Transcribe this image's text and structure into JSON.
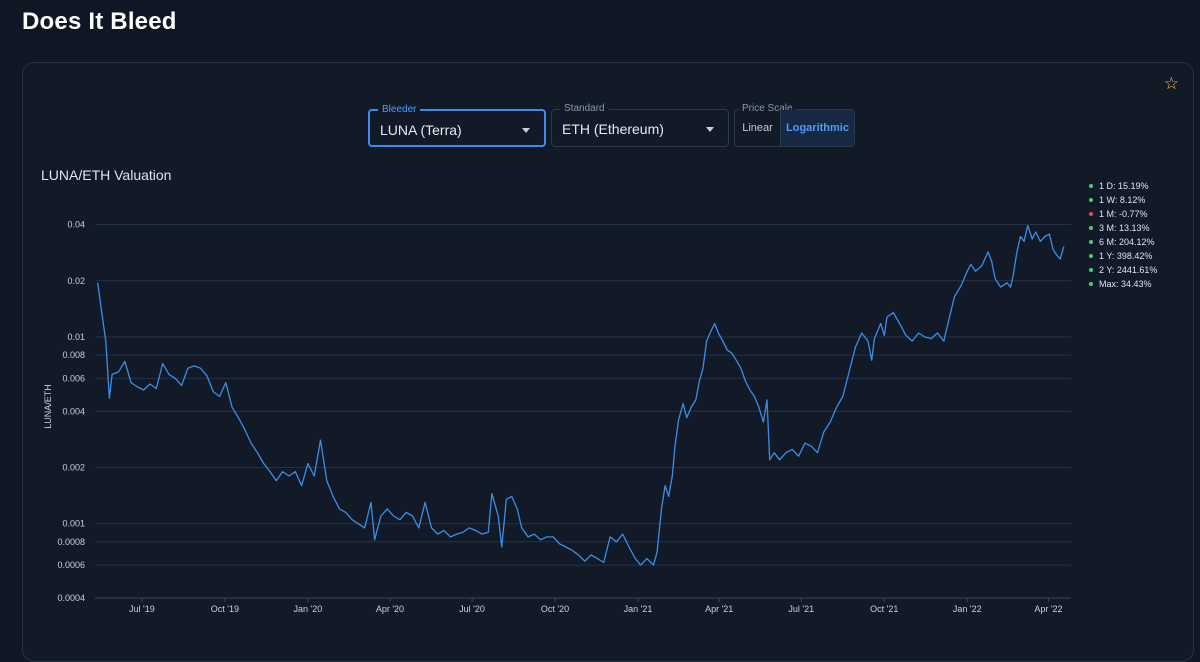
{
  "page": {
    "title": "Does It Bleed"
  },
  "controls": {
    "bleeder": {
      "label": "Bleeder",
      "value": "LUNA (Terra)"
    },
    "standard": {
      "label": "Standard",
      "value": "ETH (Ethereum)"
    },
    "price_scale": {
      "label": "Price Scale",
      "options": [
        "Linear",
        "Logarithmic"
      ],
      "selected": "Logarithmic"
    }
  },
  "colors": {
    "line": "#3a8ee6",
    "positive": "#3fd07a",
    "negative": "#e84d5b",
    "accent": "#4d9bff",
    "star": "#f2c744"
  },
  "icons": {
    "favorite": "star-outline-icon"
  },
  "stats": [
    {
      "label": "1 D: 15.19%",
      "direction": "up"
    },
    {
      "label": "1 W: 8.12%",
      "direction": "up"
    },
    {
      "label": "1 M: -0.77%",
      "direction": "down"
    },
    {
      "label": "3 M: 13.13%",
      "direction": "up"
    },
    {
      "label": "6 M: 204.12%",
      "direction": "up"
    },
    {
      "label": "1 Y: 398.42%",
      "direction": "up"
    },
    {
      "label": "2 Y: 2441.61%",
      "direction": "up"
    },
    {
      "label": "Max: 34.43%",
      "direction": "up"
    }
  ],
  "chart_data": {
    "type": "line",
    "title": "LUNA/ETH Valuation",
    "ylabel": "LUNA/ETH",
    "xlabel": "",
    "y_scale": "log",
    "ylim": [
      0.0004,
      0.045
    ],
    "xlim": [
      "2019-05-10",
      "2022-04-26"
    ],
    "grid": true,
    "y_ticks": [
      {
        "value": 0.04,
        "label": "0.04"
      },
      {
        "value": 0.02,
        "label": "0.02"
      },
      {
        "value": 0.01,
        "label": "0.01"
      },
      {
        "value": 0.008,
        "label": "0.008"
      },
      {
        "value": 0.006,
        "label": "0.006"
      },
      {
        "value": 0.004,
        "label": "0.004"
      },
      {
        "value": 0.002,
        "label": "0.002"
      },
      {
        "value": 0.001,
        "label": "0.001"
      },
      {
        "value": 0.0008,
        "label": "0.0008"
      },
      {
        "value": 0.0006,
        "label": "0.0006"
      },
      {
        "value": 0.0004,
        "label": "0.0004"
      }
    ],
    "x_ticks": [
      {
        "date": "2019-07-01",
        "label": "Jul '19"
      },
      {
        "date": "2019-10-01",
        "label": "Oct '19"
      },
      {
        "date": "2020-01-01",
        "label": "Jan '20"
      },
      {
        "date": "2020-04-01",
        "label": "Apr '20"
      },
      {
        "date": "2020-07-01",
        "label": "Jul '20"
      },
      {
        "date": "2020-10-01",
        "label": "Oct '20"
      },
      {
        "date": "2021-01-01",
        "label": "Jan '21"
      },
      {
        "date": "2021-04-01",
        "label": "Apr '21"
      },
      {
        "date": "2021-07-01",
        "label": "Jul '21"
      },
      {
        "date": "2021-10-01",
        "label": "Oct '21"
      },
      {
        "date": "2022-01-01",
        "label": "Jan '22"
      },
      {
        "date": "2022-04-01",
        "label": "Apr '22"
      }
    ],
    "series": [
      {
        "values": [
          [
            "2019-05-13",
            0.0195
          ],
          [
            "2019-05-18",
            0.013
          ],
          [
            "2019-05-22",
            0.0095
          ],
          [
            "2019-05-26",
            0.0047
          ],
          [
            "2019-05-29",
            0.0063
          ],
          [
            "2019-06-05",
            0.0065
          ],
          [
            "2019-06-12",
            0.0074
          ],
          [
            "2019-06-19",
            0.0057
          ],
          [
            "2019-06-26",
            0.0054
          ],
          [
            "2019-07-03",
            0.0052
          ],
          [
            "2019-07-10",
            0.0056
          ],
          [
            "2019-07-17",
            0.0053
          ],
          [
            "2019-07-24",
            0.0072
          ],
          [
            "2019-07-31",
            0.0063
          ],
          [
            "2019-08-07",
            0.006
          ],
          [
            "2019-08-14",
            0.0055
          ],
          [
            "2019-08-21",
            0.0068
          ],
          [
            "2019-08-28",
            0.007
          ],
          [
            "2019-09-04",
            0.0068
          ],
          [
            "2019-09-11",
            0.0062
          ],
          [
            "2019-09-18",
            0.0051
          ],
          [
            "2019-09-25",
            0.0048
          ],
          [
            "2019-10-02",
            0.0057
          ],
          [
            "2019-10-09",
            0.0042
          ],
          [
            "2019-10-16",
            0.0037
          ],
          [
            "2019-10-23",
            0.0032
          ],
          [
            "2019-10-30",
            0.0027
          ],
          [
            "2019-11-06",
            0.0024
          ],
          [
            "2019-11-13",
            0.0021
          ],
          [
            "2019-11-20",
            0.0019
          ],
          [
            "2019-11-27",
            0.0017
          ],
          [
            "2019-12-04",
            0.0019
          ],
          [
            "2019-12-11",
            0.0018
          ],
          [
            "2019-12-18",
            0.0019
          ],
          [
            "2019-12-25",
            0.0016
          ],
          [
            "2020-01-01",
            0.0021
          ],
          [
            "2020-01-08",
            0.0018
          ],
          [
            "2020-01-15",
            0.0028
          ],
          [
            "2020-01-22",
            0.0017
          ],
          [
            "2020-01-29",
            0.0014
          ],
          [
            "2020-02-05",
            0.0012
          ],
          [
            "2020-02-12",
            0.00115
          ],
          [
            "2020-02-19",
            0.00105
          ],
          [
            "2020-02-26",
            0.001
          ],
          [
            "2020-03-04",
            0.00095
          ],
          [
            "2020-03-11",
            0.0013
          ],
          [
            "2020-03-15",
            0.00082
          ],
          [
            "2020-03-22",
            0.0011
          ],
          [
            "2020-03-29",
            0.0012
          ],
          [
            "2020-04-05",
            0.0011
          ],
          [
            "2020-04-12",
            0.00105
          ],
          [
            "2020-04-19",
            0.00115
          ],
          [
            "2020-04-26",
            0.0011
          ],
          [
            "2020-05-03",
            0.00095
          ],
          [
            "2020-05-10",
            0.0013
          ],
          [
            "2020-05-17",
            0.00095
          ],
          [
            "2020-05-24",
            0.00088
          ],
          [
            "2020-05-31",
            0.00092
          ],
          [
            "2020-06-07",
            0.00085
          ],
          [
            "2020-06-14",
            0.00088
          ],
          [
            "2020-06-21",
            0.0009
          ],
          [
            "2020-06-28",
            0.00095
          ],
          [
            "2020-07-05",
            0.00092
          ],
          [
            "2020-07-12",
            0.00088
          ],
          [
            "2020-07-19",
            0.0009
          ],
          [
            "2020-07-23",
            0.00145
          ],
          [
            "2020-07-30",
            0.0011
          ],
          [
            "2020-08-03",
            0.00075
          ],
          [
            "2020-08-08",
            0.00135
          ],
          [
            "2020-08-14",
            0.0014
          ],
          [
            "2020-08-20",
            0.0012
          ],
          [
            "2020-08-25",
            0.00095
          ],
          [
            "2020-09-01",
            0.00085
          ],
          [
            "2020-09-08",
            0.00088
          ],
          [
            "2020-09-15",
            0.00082
          ],
          [
            "2020-09-22",
            0.00085
          ],
          [
            "2020-09-29",
            0.00085
          ],
          [
            "2020-10-06",
            0.00078
          ],
          [
            "2020-10-13",
            0.00075
          ],
          [
            "2020-10-20",
            0.00072
          ],
          [
            "2020-10-27",
            0.00068
          ],
          [
            "2020-11-03",
            0.00063
          ],
          [
            "2020-11-10",
            0.00068
          ],
          [
            "2020-11-17",
            0.00065
          ],
          [
            "2020-11-24",
            0.00062
          ],
          [
            "2020-12-01",
            0.00085
          ],
          [
            "2020-12-08",
            0.0008
          ],
          [
            "2020-12-15",
            0.00088
          ],
          [
            "2020-12-22",
            0.00075
          ],
          [
            "2020-12-29",
            0.00065
          ],
          [
            "2021-01-04",
            0.0006
          ],
          [
            "2021-01-11",
            0.00065
          ],
          [
            "2021-01-18",
            0.0006
          ],
          [
            "2021-01-22",
            0.0007
          ],
          [
            "2021-01-27",
            0.0012
          ],
          [
            "2021-01-31",
            0.0016
          ],
          [
            "2021-02-04",
            0.0014
          ],
          [
            "2021-02-08",
            0.0018
          ],
          [
            "2021-02-11",
            0.0026
          ],
          [
            "2021-02-15",
            0.0036
          ],
          [
            "2021-02-20",
            0.0044
          ],
          [
            "2021-02-24",
            0.0037
          ],
          [
            "2021-03-01",
            0.0042
          ],
          [
            "2021-03-06",
            0.0046
          ],
          [
            "2021-03-10",
            0.0058
          ],
          [
            "2021-03-14",
            0.0068
          ],
          [
            "2021-03-18",
            0.0095
          ],
          [
            "2021-03-23",
            0.0108
          ],
          [
            "2021-03-27",
            0.0118
          ],
          [
            "2021-03-31",
            0.0105
          ],
          [
            "2021-04-05",
            0.0095
          ],
          [
            "2021-04-10",
            0.0085
          ],
          [
            "2021-04-15",
            0.0082
          ],
          [
            "2021-04-20",
            0.0075
          ],
          [
            "2021-04-25",
            0.0068
          ],
          [
            "2021-04-30",
            0.0058
          ],
          [
            "2021-05-05",
            0.0052
          ],
          [
            "2021-05-10",
            0.0048
          ],
          [
            "2021-05-15",
            0.0042
          ],
          [
            "2021-05-20",
            0.0035
          ],
          [
            "2021-05-24",
            0.0046
          ],
          [
            "2021-05-27",
            0.0022
          ],
          [
            "2021-06-01",
            0.0024
          ],
          [
            "2021-06-07",
            0.0022
          ],
          [
            "2021-06-14",
            0.0024
          ],
          [
            "2021-06-21",
            0.0025
          ],
          [
            "2021-06-28",
            0.0023
          ],
          [
            "2021-07-05",
            0.0027
          ],
          [
            "2021-07-12",
            0.0026
          ],
          [
            "2021-07-19",
            0.0024
          ],
          [
            "2021-07-26",
            0.0031
          ],
          [
            "2021-08-02",
            0.0035
          ],
          [
            "2021-08-09",
            0.0042
          ],
          [
            "2021-08-16",
            0.0048
          ],
          [
            "2021-08-23",
            0.0065
          ],
          [
            "2021-08-30",
            0.0088
          ],
          [
            "2021-09-06",
            0.0105
          ],
          [
            "2021-09-13",
            0.0095
          ],
          [
            "2021-09-17",
            0.0075
          ],
          [
            "2021-09-20",
            0.0098
          ],
          [
            "2021-09-27",
            0.0118
          ],
          [
            "2021-10-01",
            0.0102
          ],
          [
            "2021-10-04",
            0.0128
          ],
          [
            "2021-10-11",
            0.0135
          ],
          [
            "2021-10-18",
            0.0118
          ],
          [
            "2021-10-25",
            0.0102
          ],
          [
            "2021-11-01",
            0.0095
          ],
          [
            "2021-11-08",
            0.0105
          ],
          [
            "2021-11-15",
            0.01
          ],
          [
            "2021-11-22",
            0.0098
          ],
          [
            "2021-11-29",
            0.0105
          ],
          [
            "2021-12-06",
            0.0095
          ],
          [
            "2021-12-13",
            0.0132
          ],
          [
            "2021-12-18",
            0.0165
          ],
          [
            "2021-12-25",
            0.0188
          ],
          [
            "2022-01-01",
            0.0225
          ],
          [
            "2022-01-05",
            0.0245
          ],
          [
            "2022-01-10",
            0.0225
          ],
          [
            "2022-01-17",
            0.024
          ],
          [
            "2022-01-24",
            0.0285
          ],
          [
            "2022-01-28",
            0.0255
          ],
          [
            "2022-02-01",
            0.0205
          ],
          [
            "2022-02-07",
            0.0185
          ],
          [
            "2022-02-14",
            0.0195
          ],
          [
            "2022-02-18",
            0.0185
          ],
          [
            "2022-02-21",
            0.0215
          ],
          [
            "2022-02-25",
            0.0285
          ],
          [
            "2022-03-01",
            0.0345
          ],
          [
            "2022-03-05",
            0.0325
          ],
          [
            "2022-03-09",
            0.0395
          ],
          [
            "2022-03-14",
            0.0335
          ],
          [
            "2022-03-18",
            0.0365
          ],
          [
            "2022-03-23",
            0.0325
          ],
          [
            "2022-03-28",
            0.0345
          ],
          [
            "2022-04-02",
            0.0355
          ],
          [
            "2022-04-06",
            0.0295
          ],
          [
            "2022-04-10",
            0.0275
          ],
          [
            "2022-04-14",
            0.0262
          ],
          [
            "2022-04-18",
            0.0305
          ]
        ]
      }
    ]
  }
}
